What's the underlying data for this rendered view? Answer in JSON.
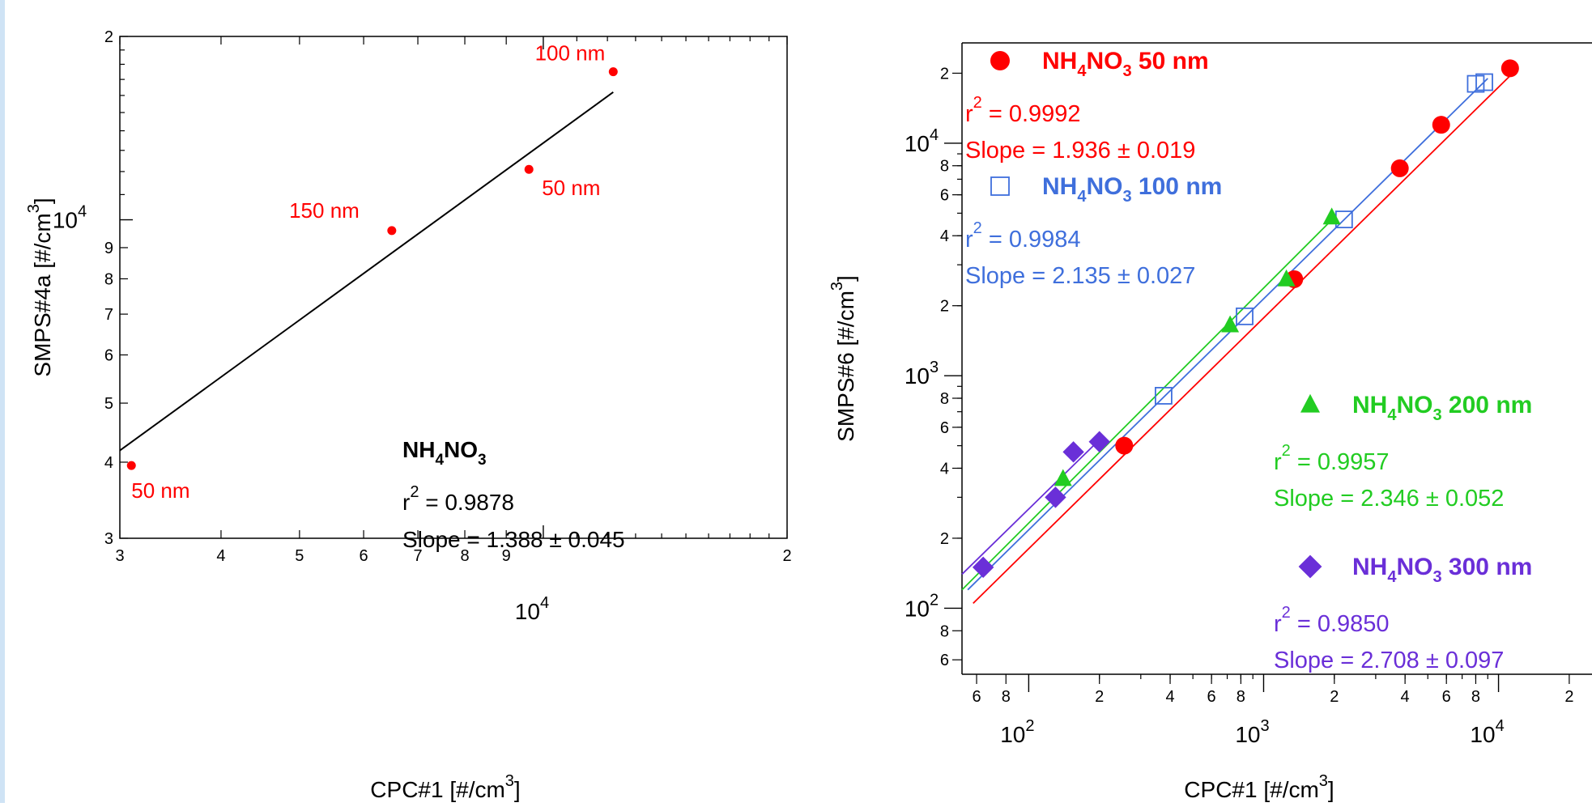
{
  "chart_data": [
    {
      "type": "scatter",
      "xscale": "log",
      "yscale": "log",
      "xlabel": "CPC#1 [#/cm",
      "xlabel_sup": "3",
      "xlabel_end": "]",
      "ylabel": "SMPS#4a [#/cm",
      "ylabel_sup": "3",
      "ylabel_end": "]",
      "xlim": [
        3000,
        20000
      ],
      "ylim": [
        3000,
        20000
      ],
      "grid": false,
      "x_ticks": [
        {
          "v": 3000,
          "t": "3"
        },
        {
          "v": 4000,
          "t": "4"
        },
        {
          "v": 5000,
          "t": "5"
        },
        {
          "v": 6000,
          "t": "6"
        },
        {
          "v": 7000,
          "t": "7"
        },
        {
          "v": 8000,
          "t": "8"
        },
        {
          "v": 9000,
          "t": "9"
        },
        {
          "v": 20000,
          "t": "2"
        }
      ],
      "x_decade": {
        "v": 10000,
        "base": "10",
        "exp": "4"
      },
      "y_ticks": [
        {
          "v": 3000,
          "t": "3"
        },
        {
          "v": 4000,
          "t": "4"
        },
        {
          "v": 5000,
          "t": "5"
        },
        {
          "v": 6000,
          "t": "6"
        },
        {
          "v": 7000,
          "t": "7"
        },
        {
          "v": 8000,
          "t": "8"
        },
        {
          "v": 9000,
          "t": "9"
        },
        {
          "v": 20000,
          "t": "2"
        }
      ],
      "y_decade": {
        "v": 10000,
        "base": "10",
        "exp": "4"
      },
      "points": [
        {
          "x": 3100,
          "y": 3950,
          "label": "50 nm"
        },
        {
          "x": 6500,
          "y": 9600,
          "label": "150 nm"
        },
        {
          "x": 9600,
          "y": 12100,
          "label": "50 nm"
        },
        {
          "x": 12200,
          "y": 17500,
          "label": "100 nm"
        }
      ],
      "fit_line": {
        "x1": 3000,
        "y1": 4180,
        "x2": 12200,
        "y2": 16200
      },
      "color_points": "#ff0000",
      "color_line": "#000000",
      "annotation": {
        "compound_parts": [
          "NH",
          "4",
          "NO",
          "3"
        ],
        "r2_prefix": "r",
        "r2_sup": "2",
        "r2_value": " = 0.9878",
        "slope": "Slope = 1.388 ± 0.045"
      }
    },
    {
      "type": "scatter",
      "xscale": "log",
      "yscale": "log",
      "xlabel": "CPC#1 [#/cm",
      "xlabel_sup": "3",
      "xlabel_end": "]",
      "ylabel": "SMPS#6 [#/cm",
      "ylabel_sup": "3",
      "ylabel_end": "]",
      "xlim": [
        52,
        25000
      ],
      "ylim": [
        52,
        27000
      ],
      "grid": false,
      "x_ticks": [
        {
          "v": 60,
          "t": "6"
        },
        {
          "v": 80,
          "t": "8"
        },
        {
          "v": 200,
          "t": "2"
        },
        {
          "v": 400,
          "t": "4"
        },
        {
          "v": 600,
          "t": "6"
        },
        {
          "v": 800,
          "t": "8"
        },
        {
          "v": 2000,
          "t": "2"
        },
        {
          "v": 4000,
          "t": "4"
        },
        {
          "v": 6000,
          "t": "6"
        },
        {
          "v": 8000,
          "t": "8"
        },
        {
          "v": 20000,
          "t": "2"
        }
      ],
      "x_decades": [
        {
          "v": 100,
          "base": "10",
          "exp": "2"
        },
        {
          "v": 1000,
          "base": "10",
          "exp": "3"
        },
        {
          "v": 10000,
          "base": "10",
          "exp": "4"
        }
      ],
      "y_ticks": [
        {
          "v": 60,
          "t": "6"
        },
        {
          "v": 80,
          "t": "8"
        },
        {
          "v": 200,
          "t": "2"
        },
        {
          "v": 400,
          "t": "4"
        },
        {
          "v": 600,
          "t": "6"
        },
        {
          "v": 800,
          "t": "8"
        },
        {
          "v": 2000,
          "t": "2"
        },
        {
          "v": 4000,
          "t": "4"
        },
        {
          "v": 6000,
          "t": "6"
        },
        {
          "v": 8000,
          "t": "8"
        },
        {
          "v": 20000,
          "t": "2"
        }
      ],
      "y_decades": [
        {
          "v": 100,
          "base": "10",
          "exp": "2"
        },
        {
          "v": 1000,
          "base": "10",
          "exp": "3"
        },
        {
          "v": 10000,
          "base": "10",
          "exp": "4"
        }
      ],
      "series": [
        {
          "name": "50 nm",
          "marker": "circle",
          "color": "#ff0000",
          "points": [
            [
              255,
              500
            ],
            [
              1350,
              2600
            ],
            [
              3800,
              7800
            ],
            [
              5700,
              12000
            ],
            [
              11200,
              21000
            ]
          ],
          "fit": {
            "x1": 58,
            "y1": 105,
            "x2": 11200,
            "y2": 19500
          },
          "legend": {
            "compound_parts": [
              "NH",
              "4",
              "NO",
              "3"
            ],
            "size": " 50 nm",
            "r2_prefix": "r",
            "r2_sup": "2",
            "r2_value": " = 0.9992",
            "slope": "Slope = 1.936 ± 0.019"
          }
        },
        {
          "name": "100 nm",
          "marker": "square",
          "color": "#3f6fdc",
          "points": [
            [
              375,
              820
            ],
            [
              830,
              1800
            ],
            [
              2200,
              4700
            ],
            [
              8000,
              18000
            ],
            [
              8700,
              18300
            ]
          ],
          "fit": {
            "x1": 55,
            "y1": 120,
            "x2": 9000,
            "y2": 19000
          },
          "legend": {
            "compound_parts": [
              "NH",
              "4",
              "NO",
              "3"
            ],
            "size": " 100 nm",
            "r2_prefix": "r",
            "r2_sup": "2",
            "r2_value": " = 0.9984",
            "slope": "Slope = 2.135 ± 0.027"
          }
        },
        {
          "name": "200 nm",
          "marker": "triangle",
          "color": "#22cc22",
          "points": [
            [
              140,
              360
            ],
            [
              720,
              1650
            ],
            [
              1250,
              2600
            ],
            [
              1950,
              4800
            ]
          ],
          "fit": {
            "x1": 52,
            "y1": 120,
            "x2": 2000,
            "y2": 4800
          },
          "legend": {
            "compound_parts": [
              "NH",
              "4",
              "NO",
              "3"
            ],
            "size": " 200 nm",
            "r2_prefix": "r",
            "r2_sup": "2",
            "r2_value": " = 0.9957",
            "slope": "Slope = 2.346 ± 0.052"
          }
        },
        {
          "name": "300 nm",
          "marker": "diamond",
          "color": "#6a2fd8",
          "points": [
            [
              64,
              150
            ],
            [
              130,
              300
            ],
            [
              155,
              470
            ],
            [
              200,
              520
            ]
          ],
          "fit": {
            "x1": 52,
            "y1": 140,
            "x2": 200,
            "y2": 530
          },
          "legend": {
            "compound_parts": [
              "NH",
              "4",
              "NO",
              "3"
            ],
            "size": " 300 nm",
            "r2_prefix": "r",
            "r2_sup": "2",
            "r2_value": " = 0.9850",
            "slope": "Slope = 2.708 ± 0.097"
          }
        }
      ]
    }
  ]
}
